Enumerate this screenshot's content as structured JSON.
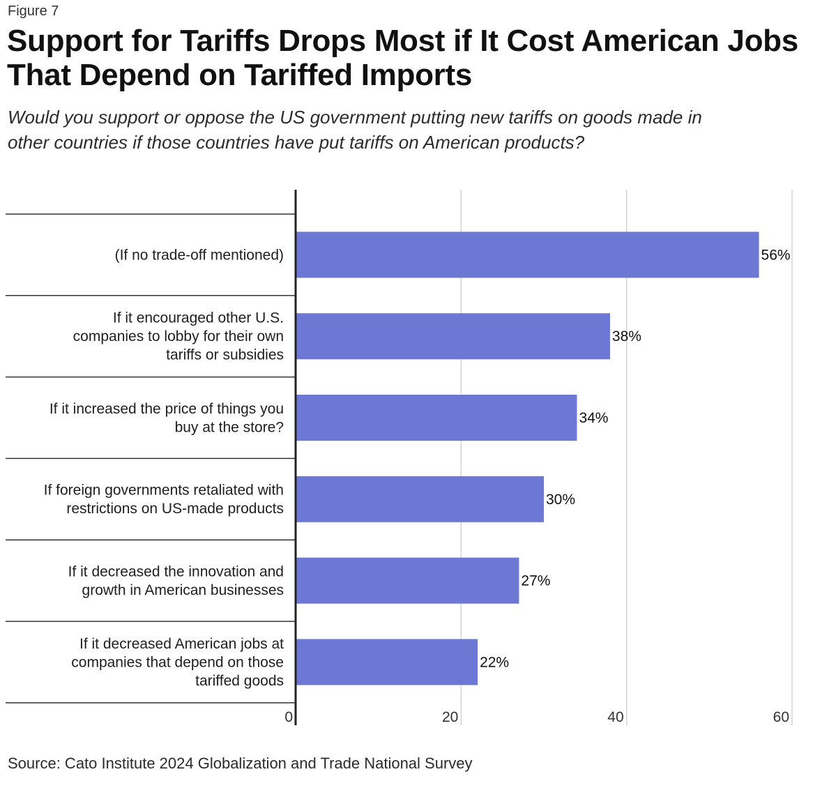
{
  "figure_label": "Figure 7",
  "chart_data": {
    "type": "bar",
    "orientation": "horizontal",
    "title": "Support for Tariffs Drops Most if It Cost American Jobs That Depend on Tariffed Imports",
    "subtitle": "Would you support or oppose the US government putting new tariffs on goods made in other countries if those countries have put tariffs on American products?",
    "categories": [
      [
        "(If no trade-off mentioned)"
      ],
      [
        "If it encouraged other U.S.",
        "companies to lobby for their own",
        "tariffs or subsidies"
      ],
      [
        "If it increased the price of things you",
        "buy at the store?"
      ],
      [
        "If foreign governments retaliated with",
        "restrictions on US-made products"
      ],
      [
        "If it decreased the innovation and",
        "growth in American businesses"
      ],
      [
        "If it decreased American jobs at",
        "companies that depend on those",
        "tariffed goods"
      ]
    ],
    "values": [
      56,
      38,
      34,
      30,
      27,
      22
    ],
    "value_labels": [
      "56%",
      "38%",
      "34%",
      "30%",
      "27%",
      "22%"
    ],
    "xlabel": "",
    "ylabel": "",
    "xlim": [
      0,
      60
    ],
    "xticks": [
      0,
      20,
      40,
      60
    ],
    "xtick_labels": [
      "0",
      "20",
      "40",
      "60"
    ],
    "grid": true,
    "legend": "none",
    "bar_color": "#6c78d4",
    "source": "Source: Cato Institute 2024 Globalization and Trade National Survey"
  }
}
